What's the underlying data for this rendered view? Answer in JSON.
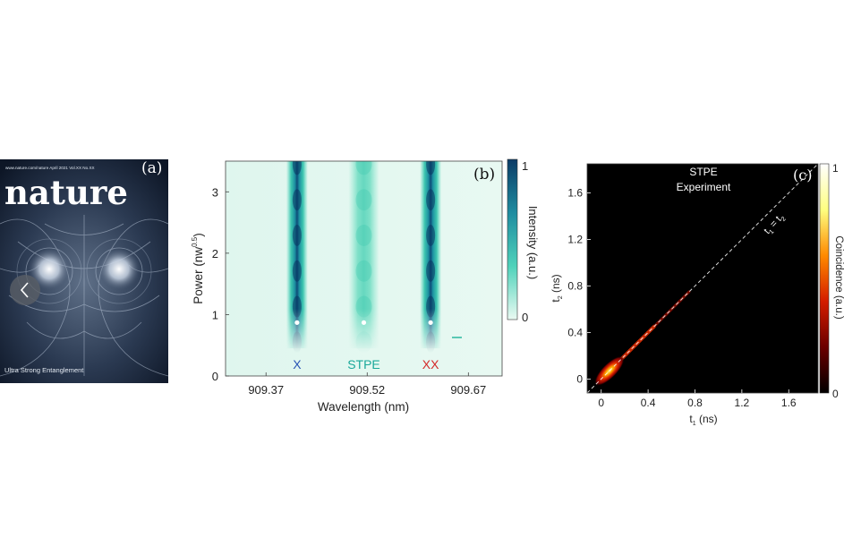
{
  "cover": {
    "panel_label": "(a)",
    "url_line": "www.nature.com/nature  April 2021 Vol.XX No.XX",
    "journal_title": "nature",
    "caption": "Ultra Strong Entanglement",
    "nav_icon": "chevron-left-icon"
  },
  "chart_data": [
    {
      "id": "b",
      "type": "heatmap",
      "panel_label": "(b)",
      "xlabel": "Wavelength (nm)",
      "ylabel": "Power (nw",
      "ylabel_sup": "0.5",
      "ylabel_close": ")",
      "x_ticks": [
        "909.37",
        "909.52",
        "909.67"
      ],
      "x_tick_values": [
        909.37,
        909.52,
        909.67
      ],
      "y_ticks": [
        "0",
        "1",
        "2",
        "3"
      ],
      "y_tick_values": [
        0,
        1,
        2,
        3
      ],
      "xlim": [
        909.31,
        909.72
      ],
      "ylim": [
        0,
        3.5
      ],
      "colorbar": {
        "label": "Intensity (a.u.)",
        "min_label": "0",
        "max_label": "1",
        "colors": [
          "#eafaf2",
          "#4fd2ba",
          "#1f8ca0",
          "#0b3b66"
        ]
      },
      "lines": [
        {
          "name": "X",
          "center": 909.416,
          "color": "#2b56b5",
          "strength": 1.0
        },
        {
          "name": "STPE",
          "center": 909.515,
          "color": "#1aa89a",
          "strength": 0.38
        },
        {
          "name": "XX",
          "center": 909.614,
          "color": "#d42a2a",
          "strength": 1.0
        }
      ],
      "markers": [
        {
          "x": 909.416,
          "y": 0.87
        },
        {
          "x": 909.515,
          "y": 0.87
        },
        {
          "x": 909.614,
          "y": 0.87
        }
      ],
      "grid": false
    },
    {
      "id": "c",
      "type": "heatmap",
      "panel_label": "(c)",
      "title_line1": "STPE",
      "title_line2": "Experiment",
      "xlabel": "t",
      "xlabel_sub": "1",
      "xlabel_unit": " (ns)",
      "ylabel": "t",
      "ylabel_sub": "2",
      "ylabel_unit": " (ns)",
      "x_ticks": [
        "0",
        "0.4",
        "0.8",
        "1.2",
        "1.6"
      ],
      "x_tick_values": [
        0,
        0.4,
        0.8,
        1.2,
        1.6
      ],
      "y_ticks": [
        "0",
        "0.4",
        "0.8",
        "1.2",
        "1.6"
      ],
      "y_tick_values": [
        0,
        0.4,
        0.8,
        1.2,
        1.6
      ],
      "xlim": [
        -0.12,
        1.85
      ],
      "ylim": [
        -0.12,
        1.85
      ],
      "diagonal_label_a": "t",
      "diagonal_label_a_sub": "1",
      "diagonal_label_eq": " = ",
      "diagonal_label_b": "t",
      "diagonal_label_b_sub": "2",
      "colorbar": {
        "label": "Coincidence (a.u.)",
        "min_label": "0",
        "max_label": "1",
        "colors": [
          "#000000",
          "#6b0000",
          "#d41c00",
          "#ff8a00",
          "#ffff80",
          "#ffffff"
        ]
      },
      "background": "#000000",
      "grid": false
    }
  ]
}
